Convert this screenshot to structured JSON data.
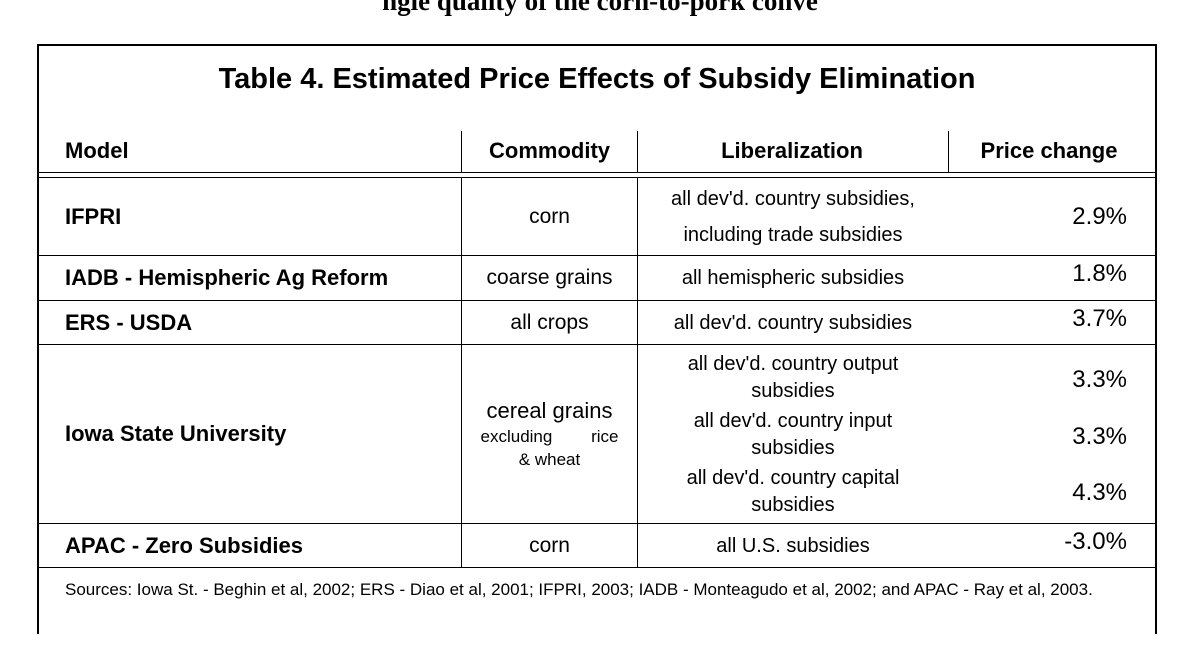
{
  "header_fragment": "ngle quality of the corn-to-pork conve",
  "table": {
    "title": "Table 4. Estimated Price Effects of Subsidy Elimination",
    "columns": [
      "Model",
      "Commodity",
      "Liberalization",
      "Price change"
    ],
    "rows": [
      {
        "model": "IFPRI",
        "commodity": "corn",
        "liberalization": [
          "all dev'd. country subsidies,",
          "including trade subsidies"
        ],
        "price_change": "2.9%"
      },
      {
        "model": "IADB - Hemispheric Ag Reform",
        "commodity": "coarse grains",
        "liberalization": [
          "all hemispheric subsidies"
        ],
        "price_change": "1.8%"
      },
      {
        "model": "ERS - USDA",
        "commodity": "all crops",
        "liberalization": [
          "all dev'd. country subsidies"
        ],
        "price_change": "3.7%"
      },
      {
        "model": "Iowa State University",
        "commodity": "cereal grains",
        "commodity_note_1": "excluding rice",
        "commodity_note_2": "& wheat",
        "liberalization": [
          "all dev'd. country output",
          "subsidies",
          "all dev'd. country input",
          "subsidies",
          "all dev'd. country capital",
          "subsidies"
        ],
        "price_change": [
          "3.3%",
          "3.3%",
          "4.3%"
        ]
      },
      {
        "model": "APAC - Zero Subsidies",
        "commodity": "corn",
        "liberalization": [
          "all U.S. subsidies"
        ],
        "price_change": "-3.0%"
      }
    ],
    "sources": "Sources: Iowa St. - Beghin et al, 2002; ERS - Diao et al, 2001; IFPRI, 2003; IADB - Monteagudo et al, 2002; and APAC - Ray et al, 2003."
  }
}
